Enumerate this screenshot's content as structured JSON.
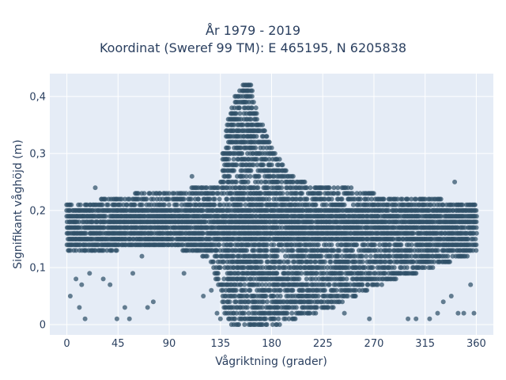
{
  "chart_data": {
    "type": "scatter",
    "title_lines": [
      "År 1979 - 2019",
      "Koordinat (Sweref 99 TM): E 465195, N 6205838"
    ],
    "xlabel": "Vågriktning (grader)",
    "ylabel": "Signifikant våghöjd (m)",
    "xlim": [
      -15,
      375
    ],
    "ylim": [
      -0.018,
      0.44
    ],
    "x_ticks": [
      0,
      45,
      90,
      135,
      180,
      225,
      270,
      315,
      360
    ],
    "x_tick_labels": [
      "0",
      "45",
      "90",
      "135",
      "180",
      "225",
      "270",
      "315",
      "360"
    ],
    "y_ticks": [
      0,
      0.1,
      0.2,
      0.3,
      0.4
    ],
    "y_tick_labels": [
      "0",
      "0,1",
      "0,2",
      "0,3",
      "0,4"
    ],
    "grid": true,
    "legend": "none",
    "marker_color": "#2f5068",
    "plot_background": "#e5ecf6",
    "dense_envelope": [
      {
        "x": 0,
        "y_min": 0.13,
        "y_max": 0.21
      },
      {
        "x": 30,
        "y_min": 0.13,
        "y_max": 0.22
      },
      {
        "x": 60,
        "y_min": 0.14,
        "y_max": 0.23
      },
      {
        "x": 90,
        "y_min": 0.14,
        "y_max": 0.23
      },
      {
        "x": 110,
        "y_min": 0.13,
        "y_max": 0.24
      },
      {
        "x": 125,
        "y_min": 0.12,
        "y_max": 0.24
      },
      {
        "x": 135,
        "y_min": 0.06,
        "y_max": 0.25
      },
      {
        "x": 140,
        "y_min": 0.01,
        "y_max": 0.35
      },
      {
        "x": 148,
        "y_min": 0.0,
        "y_max": 0.4
      },
      {
        "x": 155,
        "y_min": 0.0,
        "y_max": 0.42
      },
      {
        "x": 162,
        "y_min": 0.0,
        "y_max": 0.42
      },
      {
        "x": 170,
        "y_min": 0.0,
        "y_max": 0.36
      },
      {
        "x": 180,
        "y_min": 0.0,
        "y_max": 0.31
      },
      {
        "x": 195,
        "y_min": 0.01,
        "y_max": 0.27
      },
      {
        "x": 210,
        "y_min": 0.02,
        "y_max": 0.25
      },
      {
        "x": 230,
        "y_min": 0.03,
        "y_max": 0.24
      },
      {
        "x": 250,
        "y_min": 0.05,
        "y_max": 0.24
      },
      {
        "x": 270,
        "y_min": 0.07,
        "y_max": 0.23
      },
      {
        "x": 300,
        "y_min": 0.09,
        "y_max": 0.22
      },
      {
        "x": 330,
        "y_min": 0.11,
        "y_max": 0.22
      },
      {
        "x": 360,
        "y_min": 0.13,
        "y_max": 0.21
      }
    ],
    "outlier_points": [
      [
        3,
        0.05
      ],
      [
        8,
        0.08
      ],
      [
        11,
        0.03
      ],
      [
        13,
        0.07
      ],
      [
        16,
        0.01
      ],
      [
        20,
        0.09
      ],
      [
        25,
        0.24
      ],
      [
        32,
        0.08
      ],
      [
        38,
        0.07
      ],
      [
        44,
        0.01
      ],
      [
        51,
        0.03
      ],
      [
        55,
        0.01
      ],
      [
        58,
        0.09
      ],
      [
        66,
        0.12
      ],
      [
        71,
        0.03
      ],
      [
        76,
        0.04
      ],
      [
        103,
        0.09
      ],
      [
        110,
        0.26
      ],
      [
        120,
        0.05
      ],
      [
        127,
        0.06
      ],
      [
        131,
        0.13
      ],
      [
        132,
        0.02
      ],
      [
        135,
        0.01
      ],
      [
        137,
        0.3
      ],
      [
        150,
        0.08
      ],
      [
        153,
        0.01
      ],
      [
        244,
        0.02
      ],
      [
        266,
        0.01
      ],
      [
        282,
        0.08
      ],
      [
        300,
        0.01
      ],
      [
        307,
        0.01
      ],
      [
        319,
        0.01
      ],
      [
        326,
        0.02
      ],
      [
        331,
        0.04
      ],
      [
        338,
        0.05
      ],
      [
        341,
        0.25
      ],
      [
        344,
        0.02
      ],
      [
        349,
        0.02
      ],
      [
        355,
        0.07
      ],
      [
        358,
        0.02
      ]
    ]
  }
}
